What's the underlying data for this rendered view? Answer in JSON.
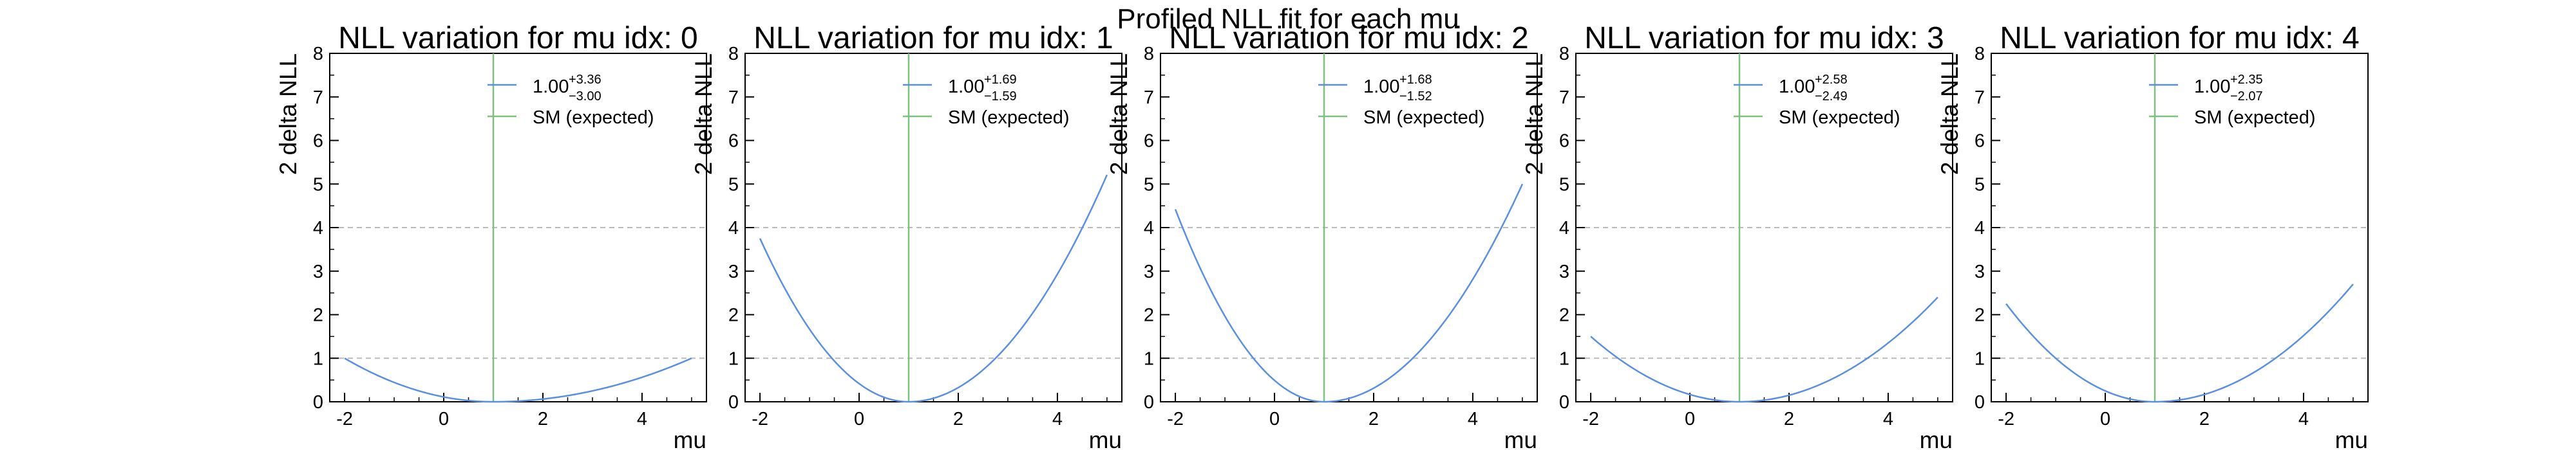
{
  "suptitle": "Profiled NLL fit for each mu",
  "colors": {
    "curve": "#5b8fe0",
    "sm_line": "#7fc07f",
    "grid": "#bbbbbb",
    "axis": "#000000"
  },
  "chart_data": [
    {
      "type": "line",
      "title": "NLL variation for mu idx: 0",
      "xlabel": "mu",
      "ylabel": "2 delta NLL",
      "xlim": [
        -2.3,
        5.3
      ],
      "ylim": [
        0,
        8
      ],
      "xticks": [
        -2,
        0,
        2,
        4
      ],
      "yticks": [
        0,
        1,
        2,
        3,
        4,
        5,
        6,
        7,
        8
      ],
      "grid_y": [
        1,
        4
      ],
      "best_fit": 1.0,
      "sm_value": 1.0,
      "curve_x_range": [
        -2,
        5
      ],
      "curve": {
        "a": 0.1111,
        "b": 0.0625
      },
      "legend": {
        "fit_value": "1.00",
        "up": "+3.36",
        "down": "−3.00",
        "sm_label": "SM (expected)"
      }
    },
    {
      "type": "line",
      "title": "NLL variation for mu idx: 1",
      "xlabel": "mu",
      "ylabel": "2 delta NLL",
      "xlim": [
        -2.3,
        5.3
      ],
      "ylim": [
        0,
        8
      ],
      "xticks": [
        -2,
        0,
        2,
        4
      ],
      "yticks": [
        0,
        1,
        2,
        3,
        4,
        5,
        6,
        7,
        8
      ],
      "grid_y": [
        1,
        4
      ],
      "best_fit": 1.0,
      "sm_value": 1.0,
      "curve_x_range": [
        -2,
        5
      ],
      "curve": {
        "a": 0.4167,
        "b": 0.3257
      },
      "legend": {
        "fit_value": "1.00",
        "up": "+1.69",
        "down": "−1.59",
        "sm_label": "SM (expected)"
      }
    },
    {
      "type": "line",
      "title": "NLL variation for mu idx: 2",
      "xlabel": "mu",
      "ylabel": "2 delta NLL",
      "xlim": [
        -2.3,
        5.3
      ],
      "ylim": [
        0,
        8
      ],
      "xticks": [
        -2,
        0,
        2,
        4
      ],
      "yticks": [
        0,
        1,
        2,
        3,
        4,
        5,
        6,
        7,
        8
      ],
      "grid_y": [
        1,
        4
      ],
      "best_fit": 1.0,
      "sm_value": 1.0,
      "curve_x_range": [
        -2,
        5
      ],
      "curve": {
        "a": 0.4911,
        "b": 0.3125
      },
      "legend": {
        "fit_value": "1.00",
        "up": "+1.68",
        "down": "−1.52",
        "sm_label": "SM (expected)"
      }
    },
    {
      "type": "line",
      "title": "NLL variation for mu idx: 3",
      "xlabel": "mu",
      "ylabel": "2 delta NLL",
      "xlim": [
        -2.3,
        5.3
      ],
      "ylim": [
        0,
        8
      ],
      "xticks": [
        -2,
        0,
        2,
        4
      ],
      "yticks": [
        0,
        1,
        2,
        3,
        4,
        5,
        6,
        7,
        8
      ],
      "grid_y": [
        1,
        4
      ],
      "best_fit": 1.0,
      "sm_value": 1.0,
      "curve_x_range": [
        -2,
        5
      ],
      "curve": {
        "a": 0.1667,
        "b": 0.15
      },
      "legend": {
        "fit_value": "1.00",
        "up": "+2.58",
        "down": "−2.49",
        "sm_label": "SM (expected)"
      }
    },
    {
      "type": "line",
      "title": "NLL variation for mu idx: 4",
      "xlabel": "mu",
      "ylabel": "2 delta NLL",
      "xlim": [
        -2.3,
        5.3
      ],
      "ylim": [
        0,
        8
      ],
      "xticks": [
        -2,
        0,
        2,
        4
      ],
      "yticks": [
        0,
        1,
        2,
        3,
        4,
        5,
        6,
        7,
        8
      ],
      "grid_y": [
        1,
        4
      ],
      "best_fit": 1.0,
      "sm_value": 1.0,
      "curve_x_range": [
        -2,
        5
      ],
      "curve": {
        "a": 0.25,
        "b": 0.1688
      },
      "legend": {
        "fit_value": "1.00",
        "up": "+2.35",
        "down": "−2.07",
        "sm_label": "SM (expected)"
      }
    }
  ]
}
